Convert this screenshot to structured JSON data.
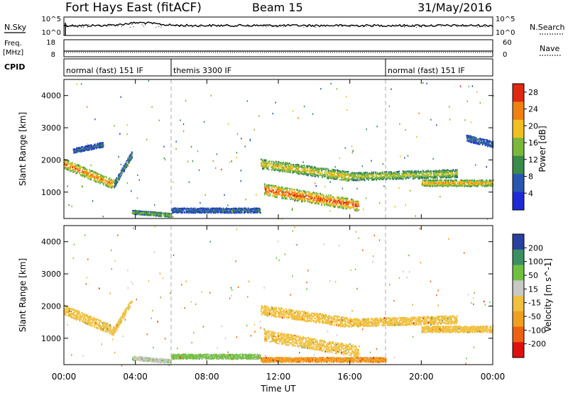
{
  "header": {
    "title": "Fort Hays East (fitACF)",
    "beam": "Beam 15",
    "date": "31/May/2016"
  },
  "summary": {
    "left_labels": [
      "N.Sky",
      "Freq.",
      "[MHz]",
      "CPID"
    ],
    "right_labels": [
      "N.Search",
      "Nave"
    ],
    "nsky_ticks": [
      "10^5",
      "10^0"
    ],
    "nsearch_ticks": [
      "10^5",
      "10^0"
    ],
    "freq_ticks": [
      "18",
      "8"
    ],
    "nave_ticks": [
      "60",
      "0"
    ],
    "cpid_segments": [
      {
        "label": "normal (fast) 151 IF",
        "start": 0,
        "end": 6
      },
      {
        "label": "themis 3300 IF",
        "start": 6,
        "end": 18
      },
      {
        "label": "normal (fast) 151 IF",
        "start": 18,
        "end": 24
      }
    ]
  },
  "time_axis": {
    "label": "Time UT",
    "ticks": [
      "00:00",
      "04:00",
      "08:00",
      "12:00",
      "16:00",
      "20:00",
      "00:00"
    ],
    "range_hours": [
      0,
      24
    ]
  },
  "chart_data": [
    {
      "type": "heatmap",
      "name": "power-panel",
      "ylabel": "Slant Range [km]",
      "yticks": [
        "1000",
        "2000",
        "3000",
        "4000"
      ],
      "ylim": [
        180,
        4500
      ],
      "xlim": [
        0,
        24
      ],
      "colorbar": {
        "label": "Power [dB]",
        "ticks": [
          "4",
          "8",
          "12",
          "16",
          "20",
          "24",
          "28"
        ],
        "range": [
          0,
          30
        ],
        "colors": [
          "#1e2ad8",
          "#2a55b0",
          "#3a8a4a",
          "#7ab83a",
          "#f0c020",
          "#f08010",
          "#e02810"
        ]
      },
      "scatter_bands": [
        {
          "t": [
            0.0,
            2.8
          ],
          "r": [
            1900,
            1250
          ],
          "width": 300,
          "intensity": 22
        },
        {
          "t": [
            2.8,
            3.8
          ],
          "r": [
            1250,
            2200
          ],
          "width": 200,
          "intensity": 10
        },
        {
          "t": [
            0.5,
            2.2
          ],
          "r": [
            2300,
            2500
          ],
          "width": 150,
          "intensity": 8
        },
        {
          "t": [
            3.8,
            6.0
          ],
          "r": [
            400,
            300
          ],
          "width": 120,
          "intensity": 14
        },
        {
          "t": [
            6.0,
            11.0
          ],
          "r": [
            450,
            450
          ],
          "width": 150,
          "intensity": 8
        },
        {
          "t": [
            11.0,
            16.0
          ],
          "r": [
            1900,
            1500
          ],
          "width": 300,
          "intensity": 18
        },
        {
          "t": [
            11.2,
            16.5
          ],
          "r": [
            1100,
            600
          ],
          "width": 350,
          "intensity": 24
        },
        {
          "t": [
            16.0,
            22.0
          ],
          "r": [
            1500,
            1600
          ],
          "width": 250,
          "intensity": 16
        },
        {
          "t": [
            20.0,
            24.0
          ],
          "r": [
            1300,
            1300
          ],
          "width": 200,
          "intensity": 20
        },
        {
          "t": [
            22.5,
            24.0
          ],
          "r": [
            2700,
            2500
          ],
          "width": 200,
          "intensity": 8
        }
      ]
    },
    {
      "type": "heatmap",
      "name": "velocity-panel",
      "ylabel": "Slant Range [km]",
      "yticks": [
        "1000",
        "2000",
        "3000",
        "4000"
      ],
      "ylim": [
        180,
        4500
      ],
      "xlim": [
        0,
        24
      ],
      "colorbar": {
        "label": "Velocity [m s^-1]",
        "ticks": [
          "200",
          "100",
          "50",
          "15",
          "-15",
          "-50",
          "-100",
          "-200"
        ],
        "colors": [
          "#2a3fa0",
          "#3a9060",
          "#70c040",
          "#c8c8c4",
          "#f0c040",
          "#f0a020",
          "#f06010",
          "#e01010"
        ]
      },
      "scatter_bands": [
        {
          "t": [
            0.0,
            2.8
          ],
          "r": [
            1900,
            1250
          ],
          "width": 300,
          "velocity": 0
        },
        {
          "t": [
            2.8,
            3.8
          ],
          "r": [
            1250,
            2200
          ],
          "width": 200,
          "velocity": 0
        },
        {
          "t": [
            3.8,
            6.0
          ],
          "r": [
            400,
            300
          ],
          "width": 120,
          "velocity": 40
        },
        {
          "t": [
            6.0,
            11.0
          ],
          "r": [
            450,
            450
          ],
          "width": 150,
          "velocity": 60
        },
        {
          "t": [
            11.0,
            16.0
          ],
          "r": [
            1900,
            1500
          ],
          "width": 300,
          "velocity": 0
        },
        {
          "t": [
            11.2,
            16.5
          ],
          "r": [
            1100,
            600
          ],
          "width": 350,
          "velocity": 0
        },
        {
          "t": [
            11.0,
            18.0
          ],
          "r": [
            350,
            350
          ],
          "width": 150,
          "velocity": -40
        },
        {
          "t": [
            16.0,
            22.0
          ],
          "r": [
            1500,
            1600
          ],
          "width": 250,
          "velocity": 0
        },
        {
          "t": [
            20.0,
            24.0
          ],
          "r": [
            1300,
            1300
          ],
          "width": 200,
          "velocity": 0
        }
      ]
    }
  ]
}
